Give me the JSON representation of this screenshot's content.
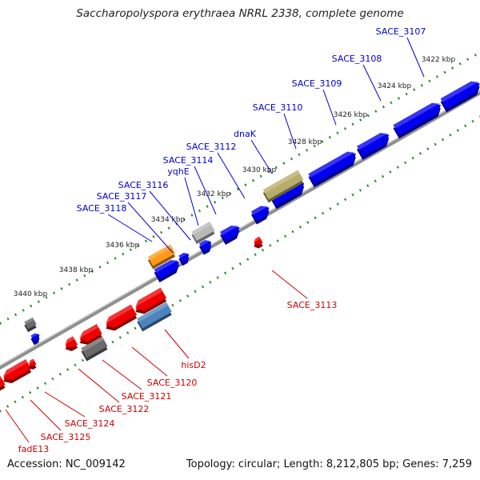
{
  "title": "Saccharopolyspora erythraea NRRL 2338, complete genome",
  "accession": "Accession: NC_009142",
  "summary": "Topology: circular; Length: 8,212,805 bp; Genes: 7,259",
  "colors": {
    "forward": "#0000ee",
    "reverse": "#ee0000",
    "forward_label": "#0000cc",
    "reverse_label": "#cc0000",
    "olive": "#b8ac6a",
    "orange": "#ff9a1a",
    "gray": "#b8b8b8",
    "dark_gray": "#6a6a6a",
    "steel_blue": "#4d84bb",
    "tick": "#2e8b2e",
    "backbone": "#8e8e8e"
  },
  "ruler_labels": [
    "3422 kbp",
    "3424 kbp",
    "3426 kbp",
    "3428 kbp",
    "3430 kbp",
    "3432 kbp",
    "3434 kbp",
    "3436 kbp",
    "3438 kbp",
    "3440 kbp"
  ],
  "forward_genes": [
    "SACE_3107",
    "SACE_3108",
    "SACE_3109",
    "SACE_3110",
    "dnaK",
    "SACE_3112",
    "SACE_3114",
    "yqhE",
    "SACE_3116",
    "SACE_3117",
    "SACE_3118"
  ],
  "reverse_genes": [
    "SACE_3113",
    "hisD2",
    "SACE_3120",
    "SACE_3121",
    "SACE_3122",
    "SACE_3124",
    "SACE_3125",
    "fadE13"
  ]
}
